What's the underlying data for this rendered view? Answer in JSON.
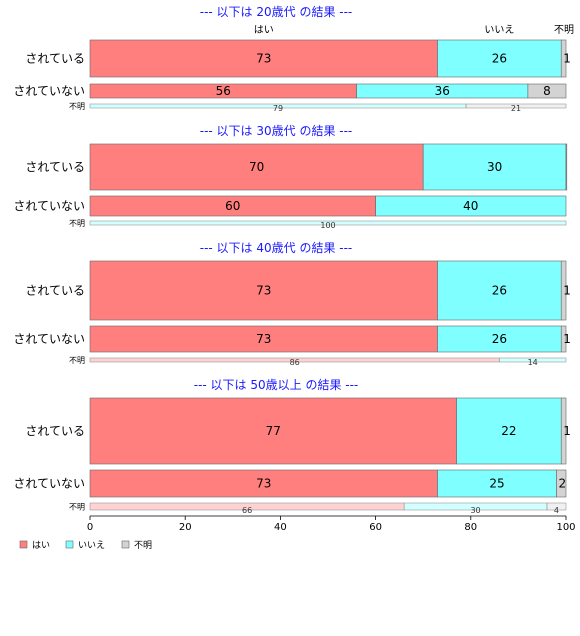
{
  "chart_data": {
    "type": "bar",
    "orientation": "horizontal",
    "stacked": "percent",
    "legend": {
      "position": "bottom-left",
      "entries": [
        {
          "label": "はい",
          "color": "#ff7f7f"
        },
        {
          "label": "いいえ",
          "color": "#7fffff"
        },
        {
          "label": "不明",
          "color": "#d3d3d3"
        }
      ]
    },
    "column_headers": [
      "はい",
      "いいえ",
      "不明"
    ],
    "xlim": [
      0,
      100
    ],
    "xticks": [
      "0",
      "20",
      "40",
      "60",
      "80",
      "100"
    ],
    "grid": false,
    "panels": [
      {
        "title": "--- 以下は 20歳代 の結果 ---",
        "rows": [
          {
            "label": "されている",
            "values": [
              73,
              26,
              1
            ],
            "labels": [
              "73",
              "26",
              "1"
            ]
          },
          {
            "label": "されていない",
            "values": [
              56,
              36,
              8
            ],
            "labels": [
              "56",
              "36",
              "8"
            ]
          },
          {
            "label": "不明",
            "values": [
              0,
              79,
              21
            ],
            "labels": [
              "",
              "79",
              "21"
            ]
          }
        ]
      },
      {
        "title": "--- 以下は 30歳代 の結果 ---",
        "rows": [
          {
            "label": "されている",
            "values": [
              70,
              30,
              0.5
            ],
            "labels": [
              "70",
              "30",
              ""
            ]
          },
          {
            "label": "されていない",
            "values": [
              60,
              40,
              0
            ],
            "labels": [
              "60",
              "40",
              ""
            ]
          },
          {
            "label": "不明",
            "values": [
              0,
              100,
              0
            ],
            "labels": [
              "",
              "100",
              ""
            ]
          }
        ]
      },
      {
        "title": "--- 以下は 40歳代 の結果 ---",
        "rows": [
          {
            "label": "されている",
            "values": [
              73,
              26,
              1
            ],
            "labels": [
              "73",
              "26",
              "1"
            ]
          },
          {
            "label": "されていない",
            "values": [
              73,
              26,
              1
            ],
            "labels": [
              "73",
              "26",
              "1"
            ]
          },
          {
            "label": "不明",
            "values": [
              86,
              14,
              0
            ],
            "labels": [
              "86",
              "14",
              ""
            ]
          }
        ]
      },
      {
        "title": "--- 以下は 50歳以上 の結果 ---",
        "rows": [
          {
            "label": "されている",
            "values": [
              77,
              22,
              1
            ],
            "labels": [
              "77",
              "22",
              "1"
            ]
          },
          {
            "label": "されていない",
            "values": [
              73,
              25,
              2
            ],
            "labels": [
              "73",
              "25",
              "2"
            ]
          },
          {
            "label": "不明",
            "values": [
              66,
              30,
              4
            ],
            "labels": [
              "66",
              "30",
              "4"
            ]
          }
        ]
      }
    ]
  }
}
